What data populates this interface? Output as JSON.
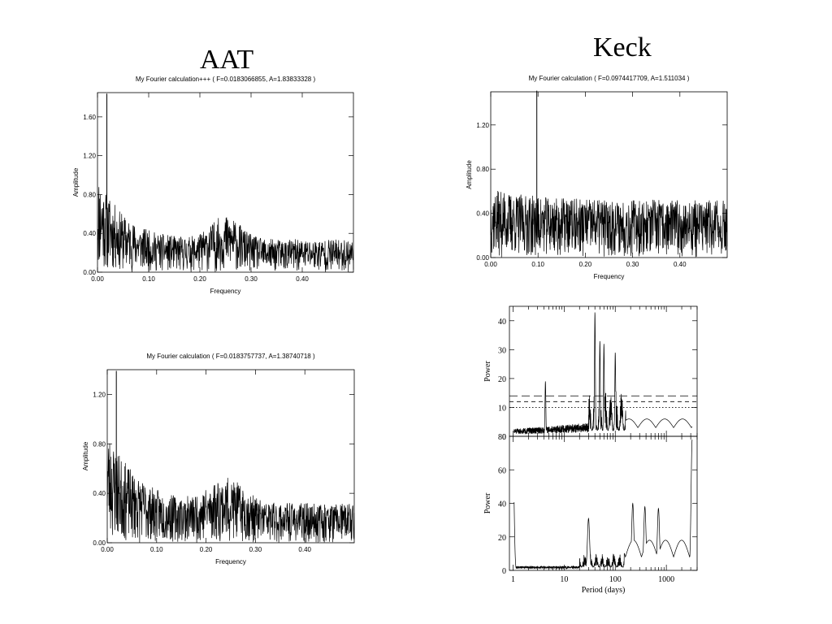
{
  "headings": {
    "left": "AAT",
    "right": "Keck"
  },
  "chart_data": [
    {
      "type": "line",
      "title": "My Fourier calculation+++ ( F=0.0183066855, A=1.83833328 )",
      "xlabel": "Frequency",
      "ylabel": "Amplitude",
      "xlim": [
        0.0,
        0.5
      ],
      "ylim": [
        0.0,
        1.85
      ],
      "xticks": [
        "0.00",
        "0.10",
        "0.20",
        "0.30",
        "0.40"
      ],
      "yticks": [
        "0.00",
        "0.40",
        "0.80",
        "1.20",
        "1.60"
      ],
      "series": [
        {
          "values_note": "",
          "peak_x": 0.0183,
          "peak_y": 1.84
        }
      ]
    },
    {
      "type": "line",
      "title": "My Fourier calculation ( F=0.0183757737, A=1.38740718 )",
      "xlabel": "Frequency",
      "ylabel": "Amplitude",
      "xlim": [
        0.0,
        0.5
      ],
      "ylim": [
        0.0,
        1.4
      ],
      "xticks": [
        "0.00",
        "0.10",
        "0.20",
        "0.30",
        "0.40"
      ],
      "yticks": [
        "0.00",
        "0.40",
        "0.80",
        "1.20"
      ],
      "series": [
        {
          "values_note": "",
          "peak_x": 0.0184,
          "peak_y": 1.39
        }
      ]
    },
    {
      "type": "line",
      "title": "My Fourier calculation ( F=0.0974417709, A=1.511034 )",
      "xlabel": "Frequency",
      "ylabel": "Amplitude",
      "xlim": [
        0.0,
        0.5
      ],
      "ylim": [
        0.0,
        1.5
      ],
      "xticks": [
        "0.00",
        "0.10",
        "0.20",
        "0.30",
        "0.40"
      ],
      "yticks": [
        "0.00",
        "0.40",
        "0.80",
        "1.20"
      ],
      "series": [
        {
          "values_note": "",
          "peak_x": 0.0974,
          "peak_y": 1.51
        }
      ]
    },
    {
      "type": "line",
      "title": "",
      "xlabel": "",
      "ylabel": "Power",
      "xscale": "log",
      "xlim": [
        0.85,
        4000
      ],
      "ylim": [
        0,
        45
      ],
      "yticks": [
        "0",
        "10",
        "20",
        "30",
        "40"
      ],
      "hlines": [
        14,
        12,
        10
      ],
      "peaks": [
        {
          "x": 1.0,
          "y": 24
        },
        {
          "x": 4.3,
          "y": 19
        },
        {
          "x": 40,
          "y": 43
        },
        {
          "x": 50,
          "y": 33
        },
        {
          "x": 60,
          "y": 32
        },
        {
          "x": 100,
          "y": 29
        }
      ]
    },
    {
      "type": "line",
      "title": "",
      "xlabel": "Period (days)",
      "ylabel": "Power",
      "xscale": "log",
      "xlim": [
        0.85,
        4000
      ],
      "ylim": [
        0,
        80
      ],
      "xticks": [
        "1",
        "10",
        "100",
        "1000"
      ],
      "yticks": [
        "0",
        "20",
        "40",
        "60",
        "80"
      ],
      "peaks": [
        {
          "x": 1.0,
          "y": 67
        },
        {
          "x": 30,
          "y": 31
        },
        {
          "x": 220,
          "y": 40
        },
        {
          "x": 380,
          "y": 38
        },
        {
          "x": 700,
          "y": 37
        },
        {
          "x": 3200,
          "y": 78
        }
      ]
    }
  ]
}
